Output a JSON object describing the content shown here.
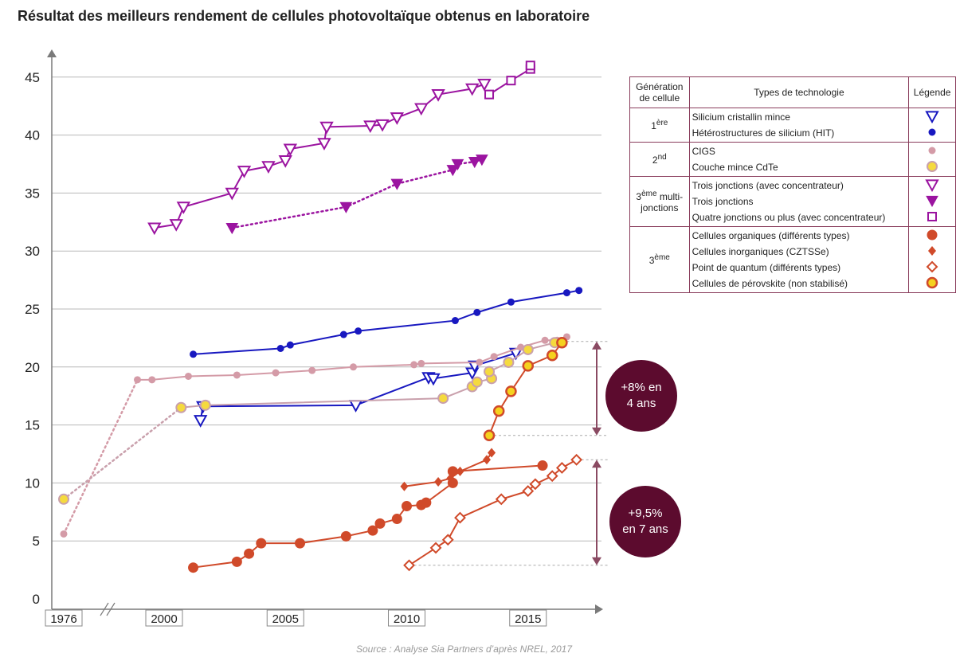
{
  "title": "Résultat des meilleurs rendement de cellules photovoltaïque obtenus en laboratoire",
  "source": "Source : Analyse Sia Partners d’après NREL, 2017",
  "bubbles": [
    {
      "line1": "+8% en",
      "line2": "4 ans"
    },
    {
      "line1": "+9,5%",
      "line2": "en 7 ans"
    }
  ],
  "legend": {
    "headers": {
      "gen": "Génération de cellule",
      "types": "Types de technologie",
      "leg": "Légende"
    },
    "groups": [
      {
        "gen_base": "1",
        "gen_sup": "ère",
        "gen_tail": "",
        "items": [
          "Silicium cristallin mince",
          "Hétérostructures de silicium (HIT)"
        ]
      },
      {
        "gen_base": "2",
        "gen_sup": "nd",
        "gen_tail": "",
        "items": [
          "CIGS",
          "Couche mince CdTe"
        ]
      },
      {
        "gen_base": "3",
        "gen_sup": "ème",
        "gen_tail": " multi-jonctions",
        "items": [
          "Trois jonctions (avec concentrateur)",
          "Trois jonctions",
          "Quatre jonctions ou plus (avec concentrateur)"
        ]
      },
      {
        "gen_base": "3",
        "gen_sup": "ème",
        "gen_tail": "",
        "items": [
          "Cellules organiques (différents types)",
          "Cellules inorganiques (CZTSSe)",
          "Point de quantum (différents types)",
          "Cellules de pérovskite (non stabilisé)"
        ]
      }
    ]
  },
  "chart_data": {
    "type": "scatter",
    "title": "Résultat des meilleurs rendement de cellules photovoltaïque obtenus en laboratoire",
    "xlabel": "",
    "ylabel": "",
    "ylim": [
      0,
      47
    ],
    "yticks": [
      0,
      5,
      10,
      15,
      20,
      25,
      30,
      35,
      40,
      45
    ],
    "xticks": [
      1976,
      2000,
      2005,
      2010,
      2015
    ],
    "x_axis_break": "1976-1999",
    "grid": true,
    "series": [
      {
        "name": "Trois jonctions (avec concentrateur)",
        "color": "#9b14a0",
        "marker": "triangle-down-open",
        "line": "solid",
        "x": [
          1999.6,
          2000.5,
          2000.8,
          2002.8,
          2003.3,
          2004.3,
          2005.0,
          2005.2,
          2006.6,
          2006.7,
          2008.5,
          2009.0,
          2009.6,
          2010.6,
          2011.3,
          2012.7,
          2013.2
        ],
        "y": [
          32.0,
          32.3,
          33.8,
          35.0,
          36.9,
          37.3,
          37.8,
          38.8,
          39.3,
          40.7,
          40.8,
          40.9,
          41.5,
          42.3,
          43.5,
          44.0,
          44.4
        ]
      },
      {
        "name": "Trois jonctions",
        "color": "#9b14a0",
        "marker": "triangle-down-filled",
        "line": "dotted",
        "x": [
          2002.8,
          2007.5,
          2009.6,
          2011.9,
          2012.1,
          2012.8,
          2013.1
        ],
        "y": [
          32.0,
          33.8,
          35.8,
          37.0,
          37.5,
          37.7,
          37.9
        ]
      },
      {
        "name": "Quatre jonctions ou plus (avec concentrateur)",
        "color": "#9b14a0",
        "marker": "square-open",
        "line": "solid",
        "x": [
          2013.4,
          2014.3,
          2015.1,
          2015.1
        ],
        "y": [
          43.5,
          44.7,
          45.7,
          46.0
        ]
      },
      {
        "name": "Silicium cristallin mince",
        "color": "#1818c0",
        "marker": "triangle-down-open",
        "line": "solid",
        "x": [
          2001.5,
          2001.6,
          2007.9,
          2010.9,
          2011.1,
          2012.7,
          2012.8,
          2014.5
        ],
        "y": [
          15.4,
          16.6,
          16.7,
          19.1,
          19.0,
          19.5,
          20.1,
          21.2
        ]
      },
      {
        "name": "Hétérostructures de silicium (HIT)",
        "color": "#1818c0",
        "marker": "circle-filled",
        "line": "solid",
        "x": [
          2001.2,
          2004.8,
          2005.2,
          2007.4,
          2008.0,
          2012.0,
          2012.9,
          2014.3,
          2016.6,
          2017.1
        ],
        "y": [
          21.1,
          21.6,
          21.9,
          22.8,
          23.1,
          24.0,
          24.7,
          25.6,
          26.4,
          26.6
        ]
      },
      {
        "name": "CIGS",
        "color": "#d49ba7",
        "marker": "circle-filled",
        "line": "solid",
        "x": [
          1976,
          1998.9,
          1999.5,
          2001.0,
          2003.0,
          2004.6,
          2006.1,
          2007.8,
          2010.3,
          2010.6,
          2013.0,
          2013.6,
          2014.7,
          2015.7,
          2016.2,
          2016.6
        ],
        "y": [
          5.6,
          18.9,
          18.9,
          19.2,
          19.3,
          19.5,
          19.7,
          20.0,
          20.2,
          20.3,
          20.4,
          20.9,
          21.7,
          22.3,
          22.3,
          22.6
        ]
      },
      {
        "name": "Couche mince CdTe",
        "color": "#f5da3e",
        "marker": "circle-filled-ringed",
        "line": "solid",
        "x": [
          1976,
          2000.7,
          2001.7,
          2011.5,
          2012.7,
          2012.9,
          2013.5,
          2013.4,
          2014.2,
          2015.0,
          2016.1,
          2016.4
        ],
        "y": [
          8.6,
          16.5,
          16.7,
          17.3,
          18.3,
          18.7,
          19.0,
          19.6,
          20.4,
          21.5,
          22.1,
          22.1
        ]
      },
      {
        "name": "Cellules organiques (différents types)",
        "color": "#d04a2a",
        "marker": "circle-filled",
        "line": "solid",
        "x": [
          2001.2,
          2003.0,
          2003.5,
          2004.0,
          2005.6,
          2007.5,
          2008.6,
          2008.9,
          2009.6,
          2010.0,
          2010.6,
          2010.8,
          2011.9,
          2011.9,
          2015.6
        ],
        "y": [
          2.7,
          3.2,
          3.9,
          4.8,
          4.8,
          5.4,
          5.9,
          6.5,
          6.9,
          8.0,
          8.1,
          8.3,
          10.0,
          11.0,
          11.5
        ]
      },
      {
        "name": "Cellules inorganiques (CZTSSe)",
        "color": "#d04a2a",
        "marker": "diamond-filled",
        "line": "solid",
        "x": [
          2009.9,
          2011.3,
          2011.8,
          2012.2,
          2013.3,
          2013.5
        ],
        "y": [
          9.7,
          10.1,
          10.4,
          11.0,
          12.0,
          12.6
        ]
      },
      {
        "name": "Point de quantum (différents types)",
        "color": "#d04a2a",
        "marker": "diamond-open",
        "line": "solid",
        "x": [
          2010.1,
          2011.2,
          2011.7,
          2012.2,
          2013.9,
          2015.0,
          2015.3,
          2016.0,
          2016.4,
          2017.0
        ],
        "y": [
          2.9,
          4.4,
          5.1,
          7.0,
          8.6,
          9.3,
          9.9,
          10.6,
          11.3,
          12.0
        ]
      },
      {
        "name": "Cellules de pérovskite (non stabilisé)",
        "color": "#d04a2a",
        "marker": "circle-yellow-red",
        "line": "solid",
        "x": [
          2013.4,
          2013.8,
          2014.3,
          2015.0,
          2016.0,
          2016.4
        ],
        "y": [
          14.1,
          16.2,
          17.9,
          20.1,
          21.0,
          22.1
        ]
      }
    ]
  }
}
